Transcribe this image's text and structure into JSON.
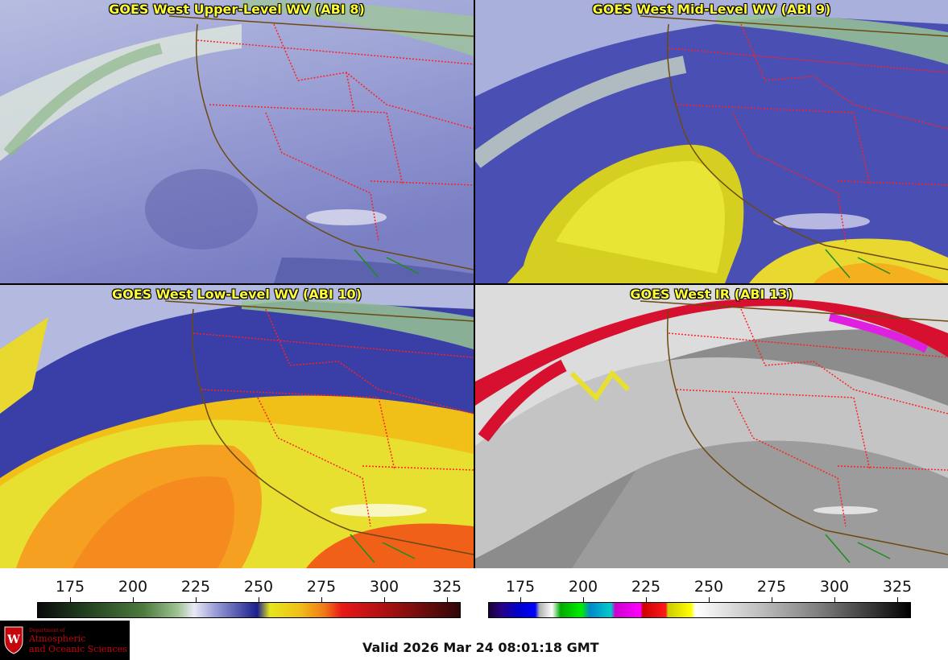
{
  "panels": {
    "upper": {
      "title": "GOES West Upper-Level WV (ABI 8)"
    },
    "mid": {
      "title": "GOES West Mid-Level WV (ABI 9)"
    },
    "low": {
      "title": "GOES West Low-Level WV (ABI 10)"
    },
    "ir": {
      "title": "GOES West IR (ABI 13)"
    }
  },
  "colorbars": {
    "wv": {
      "ticks": [
        "175",
        "200",
        "225",
        "250",
        "275",
        "300",
        "325"
      ]
    },
    "ir": {
      "ticks": [
        "175",
        "200",
        "225",
        "250",
        "275",
        "300",
        "325"
      ]
    }
  },
  "logo": {
    "dept": "Department of",
    "line1": "Atmospheric",
    "line2": "and Oceanic Sciences"
  },
  "valid_time": "Valid 2026 Mar 24 08:01:18 GMT",
  "colors": {
    "title_text": "#ffff33",
    "state_borders": "#ff2020",
    "coastline": "#6b4a10",
    "logo_red": "#c5050c"
  }
}
